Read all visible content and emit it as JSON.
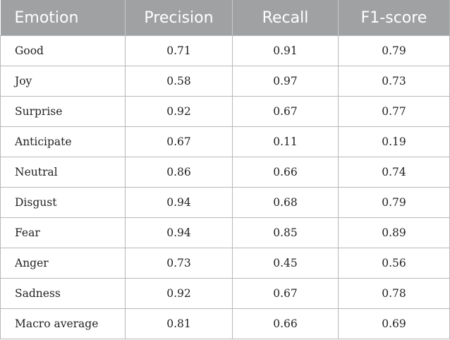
{
  "table": {
    "headers": [
      "Emotion",
      "Precision",
      "Recall",
      "F1-score"
    ],
    "rows": [
      [
        "Good",
        "0.71",
        "0.91",
        "0.79"
      ],
      [
        "Joy",
        "0.58",
        "0.97",
        "0.73"
      ],
      [
        "Surprise",
        "0.92",
        "0.67",
        "0.77"
      ],
      [
        "Anticipate",
        "0.67",
        "0.11",
        "0.19"
      ],
      [
        "Neutral",
        "0.86",
        "0.66",
        "0.74"
      ],
      [
        "Disgust",
        "0.94",
        "0.68",
        "0.79"
      ],
      [
        "Fear",
        "0.94",
        "0.85",
        "0.89"
      ],
      [
        "Anger",
        "0.73",
        "0.45",
        "0.56"
      ],
      [
        "Sadness",
        "0.92",
        "0.67",
        "0.78"
      ],
      [
        "Macro average",
        "0.81",
        "0.66",
        "0.69"
      ]
    ]
  },
  "colors": {
    "header_bg": "#9fa1a3",
    "header_text": "#ffffff",
    "border": "#b8b8b8"
  }
}
